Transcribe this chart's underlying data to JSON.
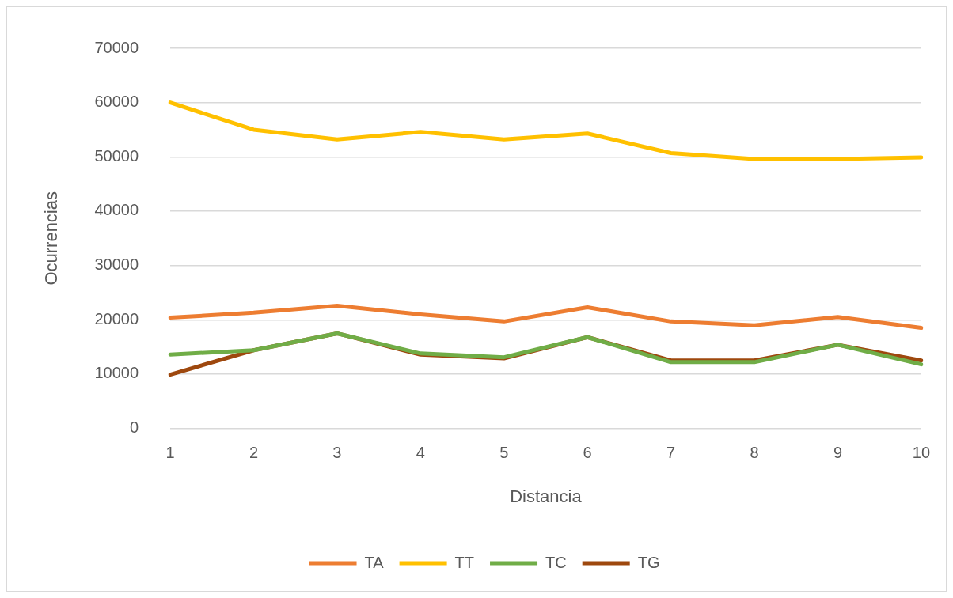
{
  "chart_data": {
    "type": "line",
    "xlabel": "Distancia",
    "ylabel": "Ocurrencias",
    "categories": [
      "1",
      "2",
      "3",
      "4",
      "5",
      "6",
      "7",
      "8",
      "9",
      "10"
    ],
    "series": [
      {
        "name": "TA",
        "color": "#ed7d31",
        "values": [
          20400,
          21300,
          22600,
          21000,
          19700,
          22300,
          19700,
          19000,
          20500,
          18500
        ]
      },
      {
        "name": "TT",
        "color": "#ffc000",
        "values": [
          60000,
          55000,
          53200,
          54600,
          53200,
          54300,
          50700,
          49600,
          49600,
          49900
        ]
      },
      {
        "name": "TC",
        "color": "#70ad47",
        "values": [
          13600,
          14400,
          17500,
          13800,
          13100,
          16800,
          12200,
          12200,
          15400,
          11800
        ]
      },
      {
        "name": "TG",
        "color": "#9e480e",
        "values": [
          9900,
          14400,
          17500,
          13600,
          12900,
          16800,
          12500,
          12500,
          15400,
          12500
        ]
      }
    ],
    "ylim": [
      0,
      70000
    ],
    "yticks": [
      0,
      10000,
      20000,
      30000,
      40000,
      50000,
      60000,
      70000
    ],
    "grid": "y",
    "legend": "bottom",
    "marker": "none",
    "line_style": "solid"
  }
}
